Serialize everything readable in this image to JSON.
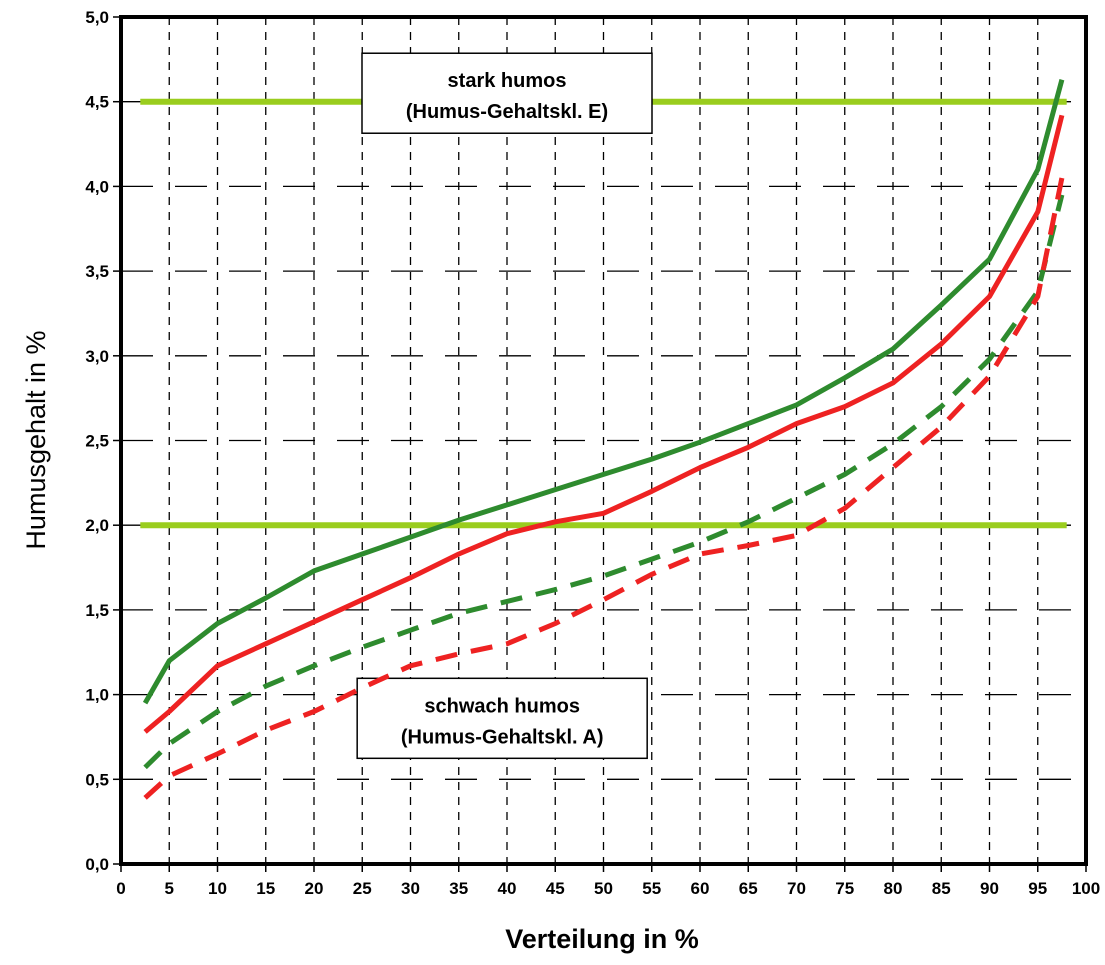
{
  "chart_data": {
    "type": "line",
    "xlabel": "Verteilung in %",
    "ylabel": "Humusgehalt in %",
    "xlim": [
      0,
      100
    ],
    "ylim": [
      0,
      5
    ],
    "x_ticks": [
      "0",
      "5",
      "10",
      "15",
      "20",
      "25",
      "30",
      "35",
      "40",
      "45",
      "50",
      "55",
      "60",
      "65",
      "70",
      "75",
      "80",
      "85",
      "90",
      "95",
      "100"
    ],
    "y_ticks": [
      "0,0",
      "0,5",
      "1,0",
      "1,5",
      "2,0",
      "2,5",
      "3,0",
      "3,5",
      "4,0",
      "4,5",
      "5,0"
    ],
    "grid": true,
    "reference_lines": [
      {
        "y": 4.5,
        "color": "#9acd1e"
      },
      {
        "y": 2.0,
        "color": "#9acd1e"
      }
    ],
    "annotations": [
      {
        "line1": "stark humos",
        "line2": "(Humus-Gehaltskl.  E)",
        "x": 40,
        "y": 4.55
      },
      {
        "line1": "schwach humos",
        "line2": "(Humus-Gehaltskl. A)",
        "x": 39.5,
        "y": 0.86
      }
    ],
    "series": [
      {
        "color": "#2e8b2e",
        "style": "solid",
        "x": [
          2.5,
          5,
          10,
          15,
          20,
          25,
          30,
          35,
          40,
          45,
          50,
          55,
          60,
          65,
          70,
          75,
          80,
          85,
          90,
          95,
          97.5
        ],
        "y": [
          0.95,
          1.2,
          1.42,
          1.57,
          1.73,
          1.83,
          1.93,
          2.03,
          2.12,
          2.21,
          2.3,
          2.39,
          2.49,
          2.6,
          2.71,
          2.87,
          3.04,
          3.3,
          3.57,
          4.1,
          4.63
        ]
      },
      {
        "color": "#ee2222",
        "style": "solid",
        "x": [
          2.5,
          5,
          10,
          15,
          20,
          25,
          30,
          35,
          40,
          45,
          50,
          55,
          60,
          65,
          70,
          75,
          80,
          85,
          90,
          95,
          97.5
        ],
        "y": [
          0.78,
          0.9,
          1.17,
          1.3,
          1.43,
          1.56,
          1.69,
          1.83,
          1.95,
          2.02,
          2.07,
          2.2,
          2.34,
          2.46,
          2.6,
          2.7,
          2.84,
          3.07,
          3.35,
          3.85,
          4.42
        ]
      },
      {
        "color": "#2e8b2e",
        "style": "dashed",
        "x": [
          2.5,
          5,
          10,
          15,
          20,
          25,
          30,
          35,
          40,
          45,
          50,
          55,
          60,
          65,
          70,
          75,
          80,
          85,
          90,
          95,
          97.5
        ],
        "y": [
          0.57,
          0.71,
          0.9,
          1.05,
          1.17,
          1.28,
          1.38,
          1.48,
          1.55,
          1.62,
          1.7,
          1.8,
          1.9,
          2.02,
          2.16,
          2.3,
          2.48,
          2.7,
          2.98,
          3.38,
          3.95
        ]
      },
      {
        "color": "#ee2222",
        "style": "dashed",
        "x": [
          2.5,
          5,
          10,
          15,
          20,
          25,
          30,
          35,
          40,
          45,
          50,
          55,
          60,
          65,
          70,
          75,
          80,
          85,
          90,
          95,
          97.5
        ],
        "y": [
          0.39,
          0.52,
          0.65,
          0.79,
          0.9,
          1.04,
          1.17,
          1.24,
          1.3,
          1.42,
          1.56,
          1.71,
          1.83,
          1.88,
          1.94,
          2.1,
          2.34,
          2.58,
          2.88,
          3.35,
          4.05
        ]
      }
    ]
  }
}
